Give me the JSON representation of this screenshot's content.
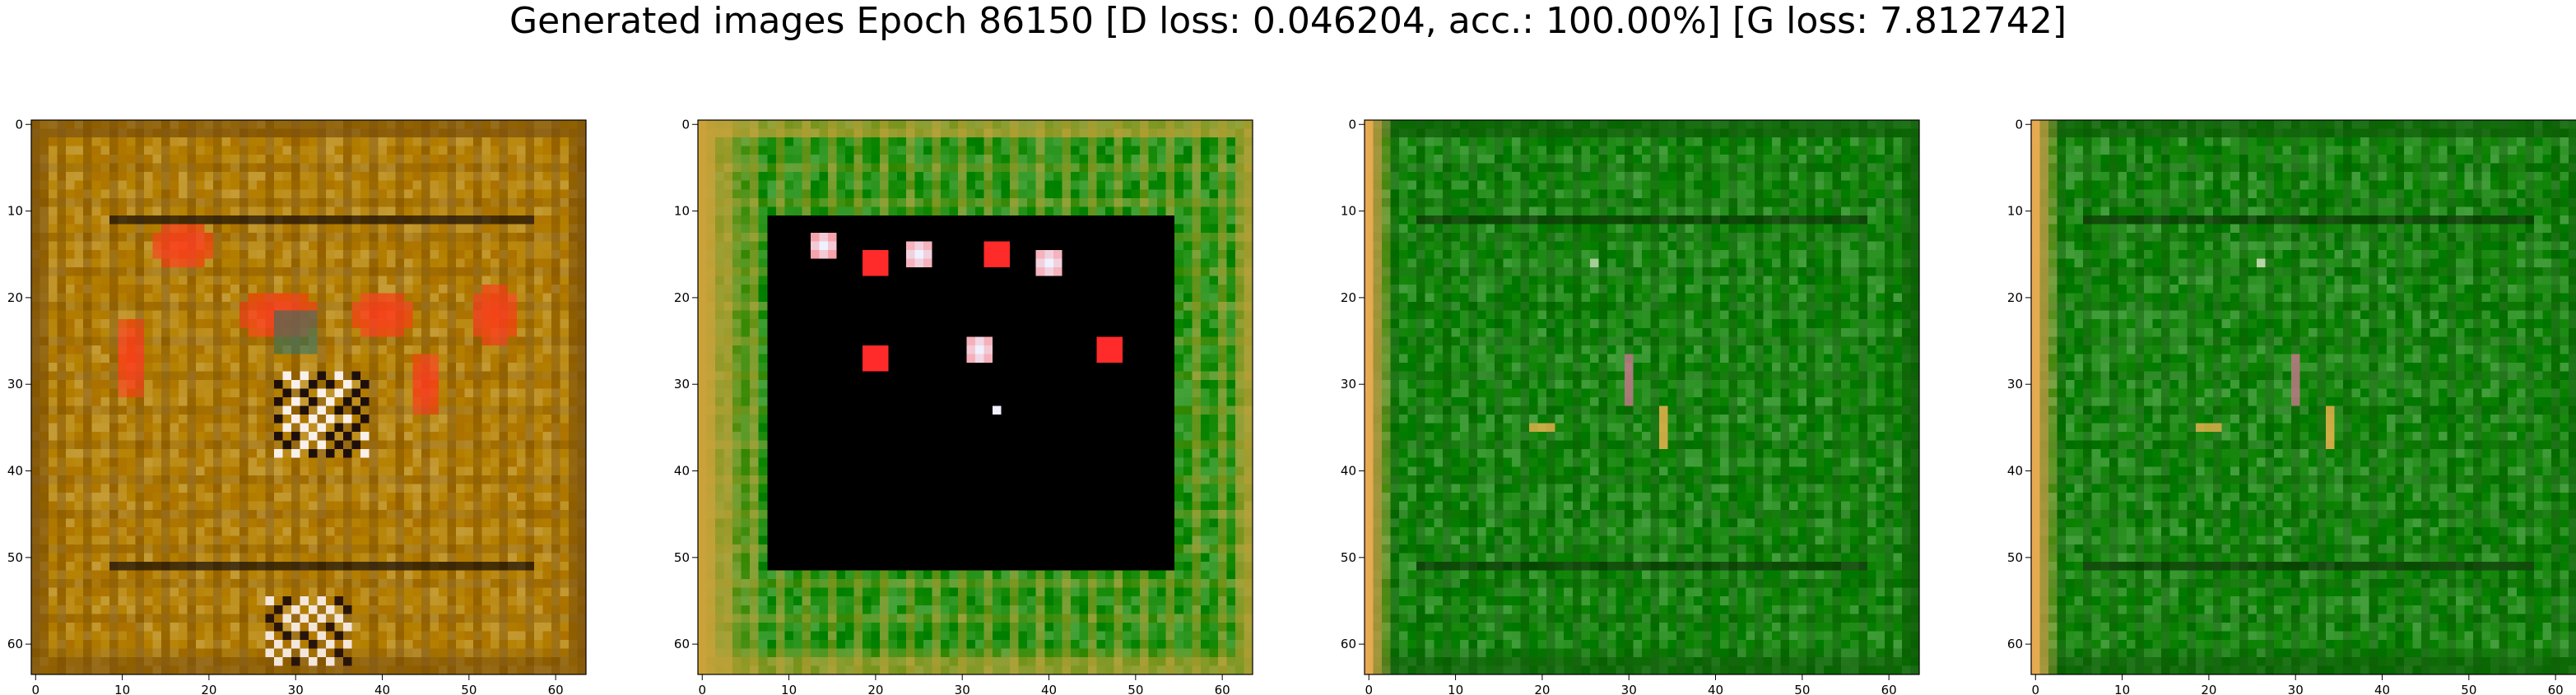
{
  "figure": {
    "title": "Generated images Epoch 86150 [D loss: 0.046204, acc.: 100.00%] [G loss: 7.812742]"
  },
  "chart_data": [
    {
      "type": "image",
      "panel": 1,
      "xlim": [
        0,
        63
      ],
      "ylim": [
        63,
        0
      ],
      "xticks": [
        0,
        10,
        20,
        30,
        40,
        50,
        60
      ],
      "yticks": [
        0,
        10,
        20,
        30,
        40,
        50,
        60
      ],
      "xtick_labels": [
        "0",
        "10",
        "20",
        "30",
        "40",
        "50",
        "60"
      ],
      "ytick_labels": [
        "0",
        "10",
        "20",
        "30",
        "40",
        "50",
        "60"
      ],
      "palette": {
        "base": "#b8860b",
        "frame": "#7a4f0c",
        "accent": "#ff3b1f",
        "accent2": "#2e6e62"
      }
    },
    {
      "type": "image",
      "panel": 2,
      "xlim": [
        0,
        63
      ],
      "ylim": [
        63,
        0
      ],
      "xticks": [
        0,
        10,
        20,
        30,
        40,
        50,
        60
      ],
      "yticks": [
        0,
        10,
        20,
        30,
        40,
        50,
        60
      ],
      "xtick_labels": [
        "0",
        "10",
        "20",
        "30",
        "40",
        "50",
        "60"
      ],
      "ytick_labels": [
        "0",
        "10",
        "20",
        "30",
        "40",
        "50",
        "60"
      ],
      "palette": {
        "base": "#1f8f12",
        "frame": "#c9a23a",
        "inner": "#000000",
        "accent": "#ff2a2a",
        "accent2": "#f0f0ff"
      }
    },
    {
      "type": "image",
      "panel": 3,
      "xlim": [
        0,
        63
      ],
      "ylim": [
        63,
        0
      ],
      "xticks": [
        0,
        10,
        20,
        30,
        40,
        50,
        60
      ],
      "yticks": [
        0,
        10,
        20,
        30,
        40,
        50,
        60
      ],
      "xtick_labels": [
        "0",
        "10",
        "20",
        "30",
        "40",
        "50",
        "60"
      ],
      "ytick_labels": [
        "0",
        "10",
        "20",
        "30",
        "40",
        "50",
        "60"
      ],
      "palette": {
        "base": "#1d8a14",
        "frame": "#0e5a08",
        "accent": "#e8b04a",
        "accent2": "#e87fa8"
      }
    },
    {
      "type": "image",
      "panel": 4,
      "xlim": [
        0,
        63
      ],
      "ylim": [
        63,
        0
      ],
      "xticks": [
        0,
        10,
        20,
        30,
        40,
        50,
        60
      ],
      "yticks": [
        0,
        10,
        20,
        30,
        40,
        50,
        60
      ],
      "xtick_labels": [
        "0",
        "10",
        "20",
        "30",
        "40",
        "50",
        "60"
      ],
      "ytick_labels": [
        "0",
        "10",
        "20",
        "30",
        "40",
        "50",
        "60"
      ],
      "palette": {
        "base": "#1d8a14",
        "frame": "#0e5a08",
        "accent": "#e8b04a",
        "accent2": "#e87fa8"
      }
    }
  ]
}
